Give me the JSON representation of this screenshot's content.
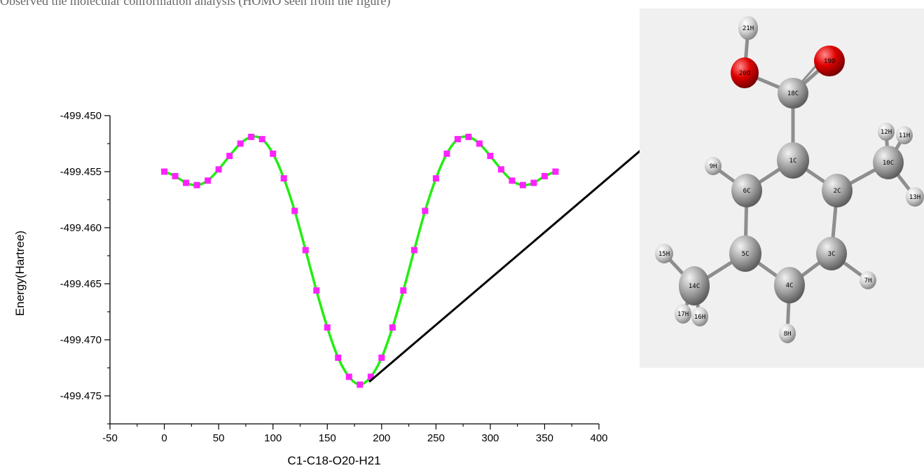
{
  "caption": "Observed the molecular conformation analysis (HOMO seen from the figure)",
  "chart_data": {
    "type": "line",
    "title": "",
    "xlabel": "C1-C18-O20-H21",
    "ylabel": "Energy(Hartree)",
    "xlim": [
      -50,
      400
    ],
    "ylim": [
      -499.4775,
      -499.45
    ],
    "x_ticks": [
      "-50",
      "0",
      "50",
      "100",
      "150",
      "200",
      "250",
      "300",
      "350",
      "400"
    ],
    "y_ticks": [
      "-499.450",
      "-499.455",
      "-499.460",
      "-499.465",
      "-499.470",
      "-499.475"
    ],
    "x_tick_values": [
      -50,
      0,
      50,
      100,
      150,
      200,
      250,
      300,
      350,
      400
    ],
    "y_tick_values": [
      -499.45,
      -499.455,
      -499.46,
      -499.465,
      -499.47,
      -499.475
    ],
    "line_color": "#22ee11",
    "marker_color": "#ff22ff",
    "series": [
      {
        "x": [
          0,
          10,
          20,
          30,
          40,
          50,
          60,
          70,
          80,
          90,
          100,
          110,
          120,
          130,
          140,
          150,
          160,
          170,
          180,
          190,
          200,
          210,
          220,
          230,
          240,
          250,
          260,
          270,
          280,
          290,
          300,
          310,
          320,
          330,
          340,
          350,
          360
        ],
        "y": [
          -499.455,
          -499.4554,
          -499.456,
          -499.4562,
          -499.4558,
          -499.4548,
          -499.4536,
          -499.4525,
          -499.4519,
          -499.4521,
          -499.4534,
          -499.4556,
          -499.4585,
          -499.462,
          -499.4656,
          -499.4689,
          -499.4716,
          -499.4733,
          -499.474,
          -499.4733,
          -499.4716,
          -499.4689,
          -499.4656,
          -499.462,
          -499.4585,
          -499.4556,
          -499.4534,
          -499.4521,
          -499.4519,
          -499.4525,
          -499.4536,
          -499.4548,
          -499.4558,
          -499.4562,
          -499.456,
          -499.4554,
          -499.455
        ]
      }
    ]
  },
  "molecule": {
    "atoms": [
      "21H",
      "20O",
      "19O",
      "18C",
      "12H",
      "11H",
      "9H",
      "1C",
      "10C",
      "6C",
      "2C",
      "13H",
      "15H",
      "5C",
      "3C",
      "14C",
      "4C",
      "7H",
      "17H",
      "16H",
      "8H"
    ]
  }
}
